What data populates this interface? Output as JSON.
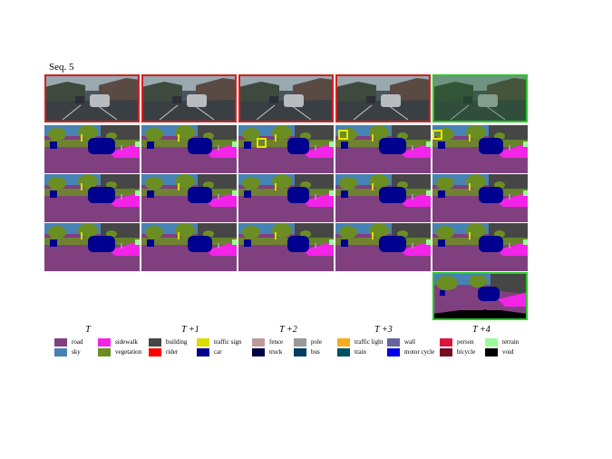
{
  "sequence_title": "Seq. 5",
  "column_labels": [
    "T",
    "T +1",
    "T +2",
    "T +3",
    "T +4"
  ],
  "legend": [
    {
      "label": "road",
      "color": "#804080"
    },
    {
      "label": "sidewalk",
      "color": "#f423e8"
    },
    {
      "label": "building",
      "color": "#464646"
    },
    {
      "label": "traffic sign",
      "color": "#dcdc00"
    },
    {
      "label": "fence",
      "color": "#be9999"
    },
    {
      "label": "pole",
      "color": "#999999"
    },
    {
      "label": "traffic light",
      "color": "#faaa1e"
    },
    {
      "label": "wall",
      "color": "#66669c"
    },
    {
      "label": "person",
      "color": "#dc143c"
    },
    {
      "label": "terrain",
      "color": "#98fb98"
    },
    {
      "label": "sky",
      "color": "#4682b4"
    },
    {
      "label": "vegetation",
      "color": "#6b8e23"
    },
    {
      "label": "rider",
      "color": "#ff0000"
    },
    {
      "label": "car",
      "color": "#00008e"
    },
    {
      "label": "truck",
      "color": "#000046"
    },
    {
      "label": "bus",
      "color": "#003c64"
    },
    {
      "label": "train",
      "color": "#005064"
    },
    {
      "label": "motor cycle",
      "color": "#0000e6"
    },
    {
      "label": "bicycle",
      "color": "#770b20"
    },
    {
      "label": "void",
      "color": "#000000"
    }
  ],
  "frame_colors": {
    "input": "#d42020",
    "target": "#22cc22",
    "marker": "#e6e600"
  }
}
